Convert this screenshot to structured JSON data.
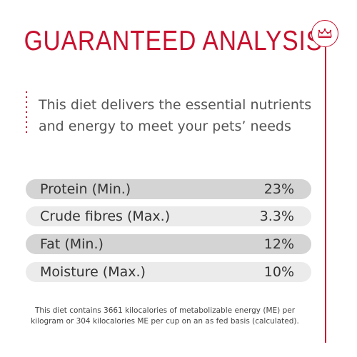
{
  "title": "GUARANTEED ANALYSIS",
  "brand": {
    "logo_icon": "crown-icon",
    "accent_color": "#c8102e"
  },
  "intro": {
    "line1": "This diet delivers the essential nutrients",
    "line2": "and energy to meet your pets’ needs"
  },
  "nutrients": [
    {
      "label": "Protein (Min.)",
      "value": "23%"
    },
    {
      "label": "Crude fibres (Max.)",
      "value": "3.3%"
    },
    {
      "label": "Fat (Min.)",
      "value": "12%"
    },
    {
      "label": "Moisture (Max.)",
      "value": "10%"
    }
  ],
  "footnote": {
    "line1": "This diet contains 3661 kilocalories of metabolizable energy (ME) per",
    "line2": "kilogram or 304 kilocalories ME per cup on an as fed basis (calculated)."
  }
}
